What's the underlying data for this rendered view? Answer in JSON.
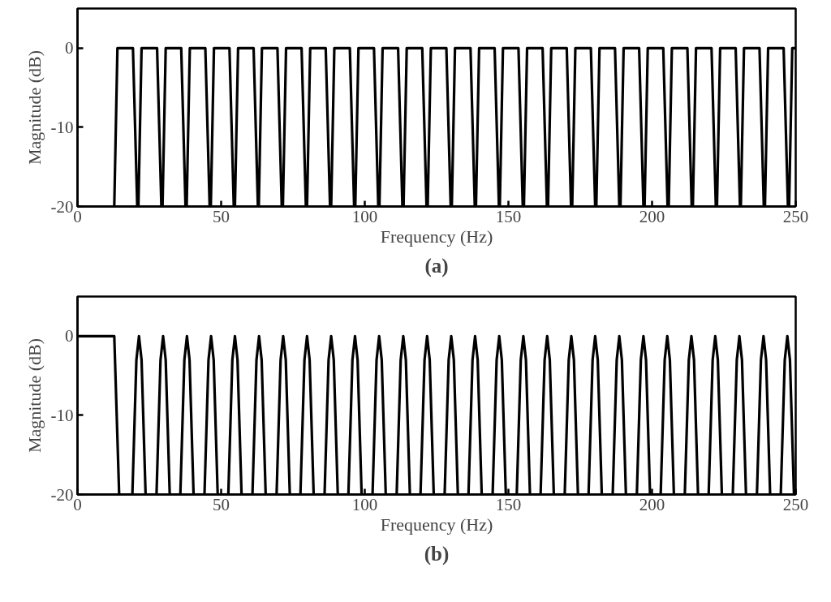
{
  "chart_data": [
    {
      "type": "line",
      "title": "(a)",
      "xlabel": "Frequency (Hz)",
      "ylabel": "Magnitude (dB)",
      "xlim": [
        0,
        250
      ],
      "ylim": [
        -20,
        5
      ],
      "xticks": [
        0,
        50,
        100,
        150,
        200,
        250
      ],
      "yticks": [
        -20,
        -10,
        0
      ],
      "line_style": "solid",
      "series": [
        {
          "color": "#000000",
          "x": [
            12.8,
            13.9,
            19.3,
            20.8,
            21.2,
            22.3,
            27.7,
            29.2,
            29.6,
            30.7,
            36.1,
            37.6,
            38.0,
            39.1,
            44.5,
            46.0,
            46.4,
            47.5,
            52.9,
            54.4,
            54.8,
            55.9,
            61.3,
            62.8,
            63.1,
            64.2,
            69.6,
            71.1,
            71.5,
            72.6,
            78.0,
            79.5,
            79.9,
            81.0,
            86.4,
            87.9,
            88.3,
            89.4,
            94.8,
            96.3,
            96.7,
            97.8,
            103.2,
            104.7,
            105.1,
            106.2,
            111.6,
            113.1,
            113.5,
            114.6,
            120.0,
            121.5,
            121.9,
            123.0,
            128.4,
            129.9,
            130.3,
            131.4,
            136.8,
            138.3,
            138.7,
            139.8,
            145.2,
            146.7,
            147.0,
            148.1,
            153.5,
            155.0,
            155.4,
            156.5,
            161.9,
            163.4,
            163.8,
            164.9,
            170.3,
            171.8,
            172.2,
            173.3,
            178.7,
            180.2,
            180.6,
            181.7,
            187.1,
            188.6,
            189.0,
            190.1,
            195.5,
            197.0,
            197.4,
            198.5,
            203.9,
            205.4,
            205.8,
            206.9,
            212.3,
            213.8,
            214.2,
            215.3,
            220.7,
            222.2,
            222.6,
            223.7,
            229.1,
            230.6,
            230.9,
            232.0,
            237.4,
            238.9,
            239.3,
            240.4,
            245.8,
            247.3,
            247.7,
            248.8,
            250.0
          ],
          "values": [
            -20,
            0,
            0,
            -20,
            -20,
            0,
            0,
            -20,
            -20,
            0,
            0,
            -20,
            -20,
            0,
            0,
            -20,
            -20,
            0,
            0,
            -20,
            -20,
            0,
            0,
            -20,
            -20,
            0,
            0,
            -20,
            -20,
            0,
            0,
            -20,
            -20,
            0,
            0,
            -20,
            -20,
            0,
            0,
            -20,
            -20,
            0,
            0,
            -20,
            -20,
            0,
            0,
            -20,
            -20,
            0,
            0,
            -20,
            -20,
            0,
            0,
            -20,
            -20,
            0,
            0,
            -20,
            -20,
            0,
            0,
            -20,
            -20,
            0,
            0,
            -20,
            -20,
            0,
            0,
            -20,
            -20,
            0,
            0,
            -20,
            -20,
            0,
            0,
            -20,
            -20,
            0,
            0,
            -20,
            -20,
            0,
            0,
            -20,
            -20,
            0,
            0,
            -20,
            -20,
            0,
            0,
            -20,
            -20,
            0,
            0,
            -20,
            -20,
            0,
            0,
            -20,
            -20,
            0,
            0,
            -20,
            -20,
            0,
            0,
            -20,
            -20,
            0,
            0
          ]
        }
      ]
    },
    {
      "type": "line",
      "title": "(b)",
      "xlabel": "Frequency (Hz)",
      "ylabel": "Magnitude (dB)",
      "xlim": [
        0,
        250
      ],
      "ylim": [
        -20,
        5
      ],
      "xticks": [
        0,
        50,
        100,
        150,
        200,
        250
      ],
      "yticks": [
        -20,
        -10,
        0
      ],
      "line_style": "solid",
      "series": [
        {
          "color": "#000000",
          "x": [
            0,
            12.8,
            14.5,
            19.1,
            20.5,
            21.4,
            22.3,
            23.7,
            27.5,
            28.9,
            29.8,
            30.7,
            32.1,
            35.8,
            37.2,
            38.1,
            39.0,
            40.4,
            44.2,
            45.6,
            46.5,
            47.4,
            48.8,
            52.5,
            53.9,
            54.8,
            55.7,
            57.1,
            60.9,
            62.3,
            63.2,
            64.1,
            65.5,
            69.3,
            70.7,
            71.6,
            72.5,
            73.9,
            77.6,
            79.0,
            79.9,
            80.8,
            82.2,
            86.0,
            87.4,
            88.3,
            89.2,
            90.6,
            94.3,
            95.7,
            96.6,
            97.5,
            98.9,
            102.7,
            104.1,
            105.0,
            105.9,
            107.3,
            111.1,
            112.5,
            113.4,
            114.3,
            115.7,
            119.4,
            120.8,
            121.7,
            122.6,
            124.0,
            127.8,
            129.2,
            130.1,
            131.0,
            132.4,
            136.1,
            137.5,
            138.4,
            139.3,
            140.7,
            144.5,
            145.9,
            146.8,
            147.7,
            149.1,
            152.9,
            154.3,
            155.2,
            156.1,
            157.5,
            161.2,
            162.6,
            163.5,
            164.4,
            165.8,
            169.6,
            171.0,
            171.9,
            172.8,
            174.2,
            177.9,
            179.3,
            180.2,
            181.1,
            182.5,
            186.3,
            187.7,
            188.6,
            189.5,
            190.9,
            194.7,
            196.1,
            197.0,
            197.9,
            199.3,
            203.0,
            204.4,
            205.3,
            206.2,
            207.6,
            211.4,
            212.8,
            213.7,
            214.6,
            216.0,
            219.7,
            221.1,
            222.0,
            222.9,
            224.3,
            228.1,
            229.5,
            230.4,
            231.3,
            232.7,
            236.5,
            237.9,
            238.8,
            239.7,
            241.1,
            244.8,
            246.2,
            247.1,
            248.0,
            249.4
          ],
          "values": [
            0,
            0,
            -20,
            -20,
            -3,
            0,
            -3,
            -20,
            -20,
            -3,
            0,
            -3,
            -20,
            -20,
            -3,
            0,
            -3,
            -20,
            -20,
            -3,
            0,
            -3,
            -20,
            -20,
            -3,
            0,
            -3,
            -20,
            -20,
            -3,
            0,
            -3,
            -20,
            -20,
            -3,
            0,
            -3,
            -20,
            -20,
            -3,
            0,
            -3,
            -20,
            -20,
            -3,
            0,
            -3,
            -20,
            -20,
            -3,
            0,
            -3,
            -20,
            -20,
            -3,
            0,
            -3,
            -20,
            -20,
            -3,
            0,
            -3,
            -20,
            -20,
            -3,
            0,
            -3,
            -20,
            -20,
            -3,
            0,
            -3,
            -20,
            -20,
            -3,
            0,
            -3,
            -20,
            -20,
            -3,
            0,
            -3,
            -20,
            -20,
            -3,
            0,
            -3,
            -20,
            -20,
            -3,
            0,
            -3,
            -20,
            -20,
            -3,
            0,
            -3,
            -20,
            -20,
            -3,
            0,
            -3,
            -20,
            -20,
            -3,
            0,
            -3,
            -20,
            -20,
            -3,
            0,
            -3,
            -20,
            -20,
            -3,
            0,
            -3,
            -20,
            -20,
            -3,
            0,
            -3,
            -20,
            -20,
            -3,
            0,
            -3,
            -20,
            -20,
            -3,
            0,
            -3,
            -20,
            -20,
            -3,
            0,
            -3,
            -20,
            -20,
            -3,
            0,
            -3,
            -20
          ]
        }
      ]
    }
  ]
}
